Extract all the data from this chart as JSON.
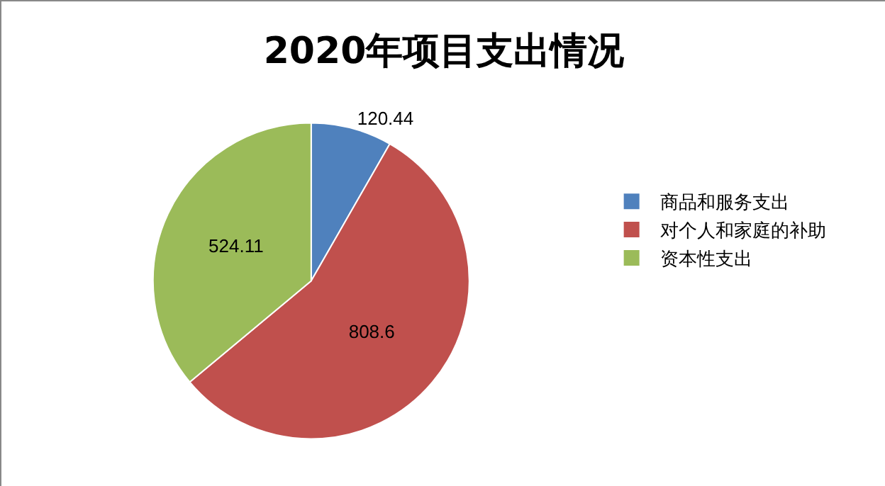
{
  "chart_data": {
    "type": "pie",
    "title": "2020年项目支出情况",
    "categories": [
      "商品和服务支出",
      "对个人和家庭的补助",
      "资本性支出"
    ],
    "values": [
      120.44,
      808.6,
      524.11
    ],
    "colors": [
      "#4f81bd",
      "#c0504d",
      "#9bbb59"
    ],
    "data_labels": true,
    "legend": "right"
  }
}
